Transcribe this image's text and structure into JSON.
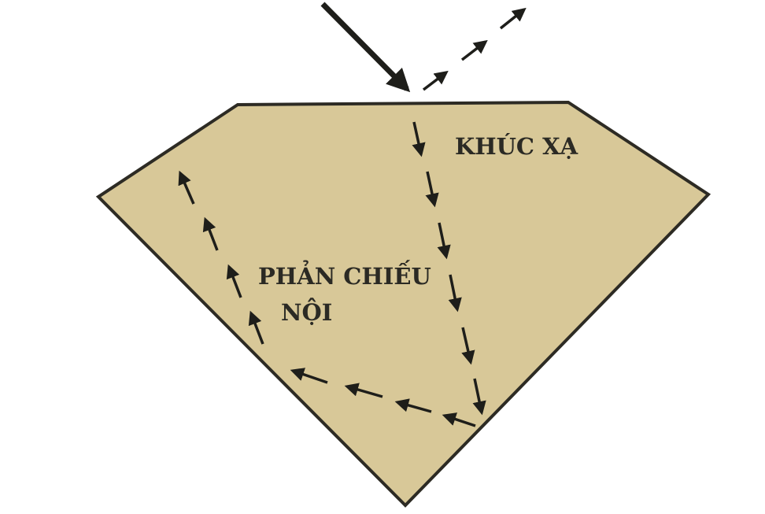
{
  "labels": {
    "refraction": "KHÚC XẠ",
    "internal_reflection_line1": "PHẢN CHIẾU",
    "internal_reflection_line2": "NỘI"
  },
  "colors": {
    "gem_fill": "#d8c898",
    "gem_outline": "#2d2b24",
    "arrow": "#1e1e1a",
    "text": "#2b2a24"
  }
}
